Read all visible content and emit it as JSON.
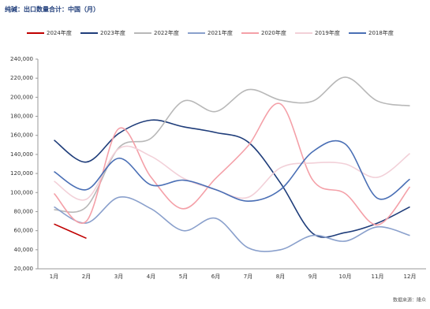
{
  "chart_data": {
    "type": "line",
    "title": "纯碱：出口数量合计：中国（月）",
    "source": "数据来源：隆众",
    "categories": [
      "1月",
      "2月",
      "3月",
      "4月",
      "5月",
      "6月",
      "7月",
      "8月",
      "9月",
      "10月",
      "11月",
      "12月"
    ],
    "ylim": [
      20000,
      240000
    ],
    "yticks": [
      {
        "value": 20000,
        "label": "20,000"
      },
      {
        "value": 40000,
        "label": "40,000"
      },
      {
        "value": 60000,
        "label": "60,000"
      },
      {
        "value": 80000,
        "label": "80,000"
      },
      {
        "value": 100000,
        "label": "100,000"
      },
      {
        "value": 120000,
        "label": "120,000"
      },
      {
        "value": 140000,
        "label": "140,000"
      },
      {
        "value": 160000,
        "label": "160,000"
      },
      {
        "value": 180000,
        "label": "180,000"
      },
      {
        "value": 200000,
        "label": "200,000"
      },
      {
        "value": 220000,
        "label": "220,000"
      },
      {
        "value": 240000,
        "label": "240,000"
      }
    ],
    "series": [
      {
        "name": "2024年度",
        "color": "#c00000",
        "values": [
          67000,
          52000,
          null,
          null,
          null,
          null,
          null,
          null,
          null,
          null,
          null,
          null
        ]
      },
      {
        "name": "2023年度",
        "color": "#1f3d7a",
        "values": [
          155000,
          132000,
          162000,
          176000,
          169000,
          163000,
          153000,
          110000,
          57000,
          58000,
          68000,
          85000
        ]
      },
      {
        "name": "2022年度",
        "color": "#b8b8b8",
        "values": [
          82000,
          85000,
          147000,
          157000,
          196000,
          185000,
          208000,
          197000,
          196000,
          221000,
          196000,
          191000
        ]
      },
      {
        "name": "2021年度",
        "color": "#8aa0cc",
        "values": [
          85000,
          68000,
          95000,
          83000,
          60000,
          73000,
          42000,
          40000,
          55000,
          49000,
          64000,
          55000
        ]
      },
      {
        "name": "2020年度",
        "color": "#f4a0a8",
        "values": [
          99000,
          70000,
          167000,
          116000,
          83000,
          115000,
          149000,
          193000,
          113000,
          99000,
          66000,
          106000
        ]
      },
      {
        "name": "2019年度",
        "color": "#f2d0d8",
        "values": [
          112000,
          93000,
          146000,
          138000,
          115000,
          103000,
          95000,
          126000,
          131000,
          130000,
          116000,
          141000
        ]
      },
      {
        "name": "2018年度",
        "color": "#4a6fb5",
        "values": [
          122000,
          103000,
          136000,
          108000,
          113000,
          103000,
          91000,
          103000,
          143000,
          151000,
          94000,
          114000
        ]
      }
    ]
  }
}
